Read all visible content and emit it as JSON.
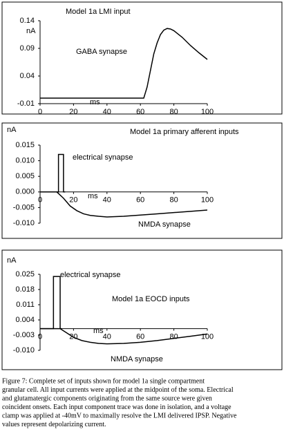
{
  "chart_data": [
    {
      "type": "line",
      "title": "Model 1a LMI input",
      "ylabel": "nA",
      "xlabel": "ms",
      "xlim": [
        0,
        100
      ],
      "xticks": [
        0,
        20,
        40,
        60,
        80,
        100
      ],
      "ylim": [
        -0.01,
        0.14
      ],
      "yticks": [
        -0.01,
        0.04,
        0.09,
        0.14
      ],
      "annotations": [
        "GABA synapse"
      ],
      "series": [
        {
          "color": "#000000",
          "x": [
            0,
            60,
            62,
            64,
            66,
            68,
            70,
            72,
            74,
            76,
            78,
            80,
            85,
            90,
            95,
            100
          ],
          "values": [
            0,
            0,
            0,
            0.02,
            0.05,
            0.08,
            0.1,
            0.115,
            0.123,
            0.126,
            0.125,
            0.122,
            0.11,
            0.095,
            0.082,
            0.07
          ]
        }
      ]
    },
    {
      "type": "line",
      "title": "Model 1a primary afferent inputs",
      "ylabel": "nA",
      "xlabel": "ms",
      "xlim": [
        0,
        100
      ],
      "xticks": [
        0,
        20,
        40,
        60,
        80,
        100
      ],
      "ylim": [
        -0.01,
        0.015
      ],
      "yticks": [
        {
          "value": -0.01,
          "label": "-0.010"
        },
        -0.005,
        {
          "value": 0,
          "label": "0.000"
        },
        0.005,
        {
          "value": 0.01,
          "label": "0.010"
        },
        0.015
      ],
      "annotations": [
        "electrical synapse",
        "NMDA synapse"
      ],
      "series": [
        {
          "color": "#000000",
          "x": [
            0,
            11,
            11,
            14,
            14,
            15
          ],
          "values": [
            0,
            0,
            0.012,
            0.012,
            0,
            0
          ]
        },
        {
          "color": "#000000",
          "x": [
            0,
            10,
            14,
            18,
            22,
            26,
            30,
            35,
            40,
            50,
            60,
            70,
            80,
            90,
            100
          ],
          "values": [
            0,
            0,
            -0.002,
            -0.0045,
            -0.006,
            -0.007,
            -0.0075,
            -0.0078,
            -0.008,
            -0.0078,
            -0.0074,
            -0.007,
            -0.0066,
            -0.0062,
            -0.0058
          ]
        }
      ]
    },
    {
      "type": "line",
      "title": "Model 1a EOCD inputs",
      "ylabel": "nA",
      "xlabel": "ms",
      "xlim": [
        0,
        100
      ],
      "xticks": [
        0,
        20,
        40,
        60,
        80,
        100
      ],
      "ylim": [
        -0.01,
        0.025
      ],
      "yticks": [
        {
          "value": -0.01,
          "label": "-0.010"
        },
        -0.003,
        0.004,
        0.011,
        0.018,
        0.025
      ],
      "annotations": [
        "electrical synapse",
        "NMDA synapse"
      ],
      "series": [
        {
          "color": "#000000",
          "x": [
            0,
            8,
            8,
            12,
            12,
            13
          ],
          "values": [
            0,
            0,
            0.024,
            0.024,
            0,
            0
          ]
        },
        {
          "color": "#000000",
          "x": [
            0,
            12,
            16,
            20,
            25,
            30,
            35,
            40,
            50,
            60,
            70,
            80,
            90,
            100
          ],
          "values": [
            0,
            0,
            -0.002,
            -0.004,
            -0.0055,
            -0.0063,
            -0.0068,
            -0.007,
            -0.0068,
            -0.0063,
            -0.0055,
            -0.0045,
            -0.0035,
            -0.0025
          ]
        }
      ]
    }
  ],
  "caption": [
    "Figure 7:  Complete set of inputs shown for model 1a single compartment",
    "granular cell. All input currents were applied at the midpoint of the soma. Electrical",
    "and glutamatergic components originating from the same source were given",
    "coincident onsets. Each input component trace was done in isolation, and a voltage",
    "clamp was applied at -40mV to maximally resolve the LMI delivered IPSP.  Negative",
    "values represent depolarizing current."
  ]
}
